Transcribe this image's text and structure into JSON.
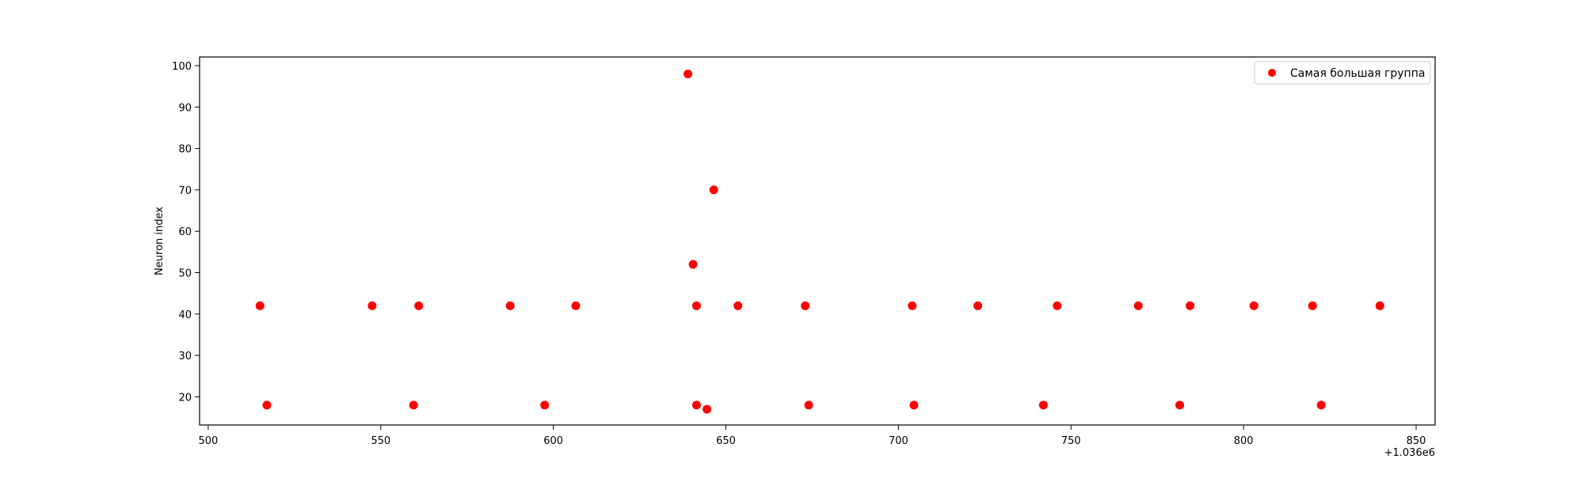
{
  "chart_data": {
    "type": "scatter",
    "xlabel": "",
    "ylabel": "Neuron index",
    "x_offset_label": "+1.036e6",
    "xlim": [
      497.5,
      855.5
    ],
    "ylim": [
      13.2,
      102.1
    ],
    "x_ticks": [
      500,
      550,
      600,
      650,
      700,
      750,
      800,
      850
    ],
    "y_ticks": [
      20,
      30,
      40,
      50,
      60,
      70,
      80,
      90,
      100
    ],
    "grid": false,
    "legend_position": "top-right",
    "series": [
      {
        "name": "Самая большая группа",
        "color": "#ff0000",
        "points": [
          {
            "x": 515,
            "y": 42
          },
          {
            "x": 517,
            "y": 18
          },
          {
            "x": 547.5,
            "y": 42
          },
          {
            "x": 559.5,
            "y": 18
          },
          {
            "x": 561,
            "y": 42
          },
          {
            "x": 587.5,
            "y": 42
          },
          {
            "x": 597.5,
            "y": 18
          },
          {
            "x": 606.5,
            "y": 42
          },
          {
            "x": 639,
            "y": 98
          },
          {
            "x": 640.5,
            "y": 52
          },
          {
            "x": 641.5,
            "y": 42
          },
          {
            "x": 641.5,
            "y": 18
          },
          {
            "x": 644.5,
            "y": 17
          },
          {
            "x": 646.5,
            "y": 70
          },
          {
            "x": 653.5,
            "y": 42
          },
          {
            "x": 673,
            "y": 42
          },
          {
            "x": 674,
            "y": 18
          },
          {
            "x": 704,
            "y": 42
          },
          {
            "x": 704.5,
            "y": 18
          },
          {
            "x": 723,
            "y": 42
          },
          {
            "x": 742,
            "y": 18
          },
          {
            "x": 746,
            "y": 42
          },
          {
            "x": 769.5,
            "y": 42
          },
          {
            "x": 781.5,
            "y": 18
          },
          {
            "x": 784.5,
            "y": 42
          },
          {
            "x": 803,
            "y": 42
          },
          {
            "x": 820,
            "y": 42
          },
          {
            "x": 822.5,
            "y": 18
          },
          {
            "x": 839.5,
            "y": 42
          }
        ]
      }
    ]
  }
}
